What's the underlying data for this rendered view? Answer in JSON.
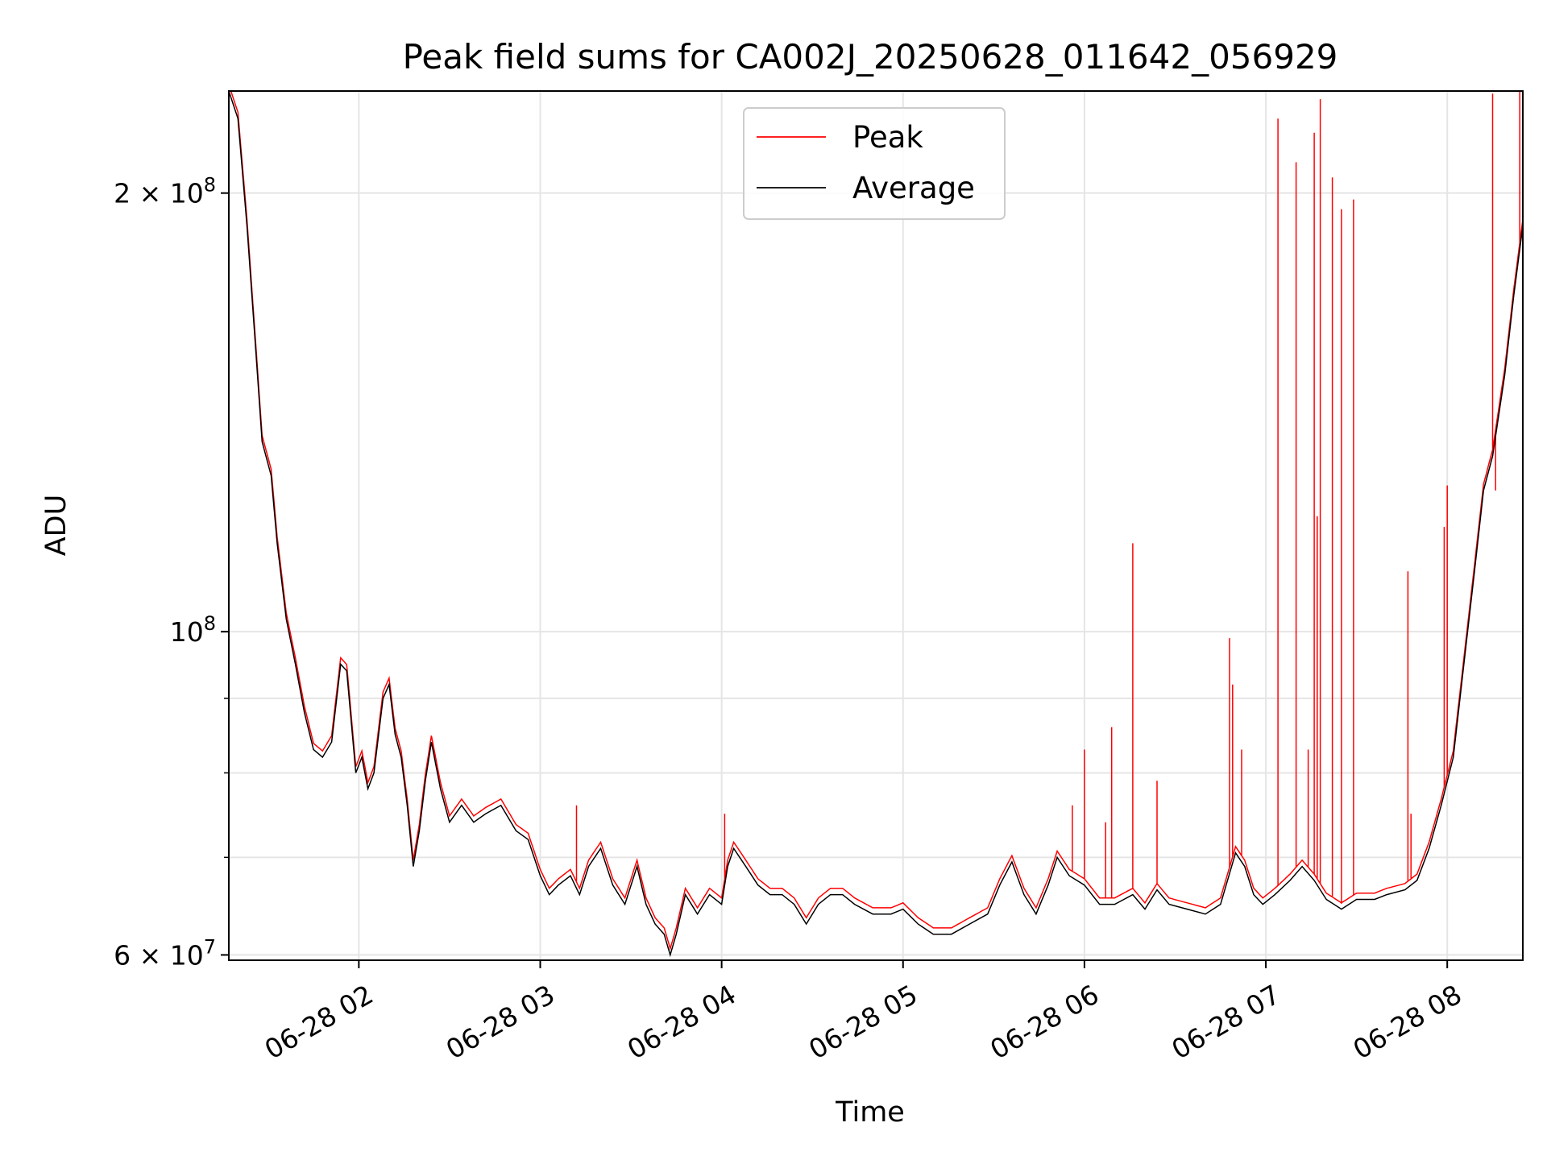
{
  "chart_data": {
    "type": "line",
    "title": "Peak field sums for CA002J_20250628_011642_056929",
    "xlabel": "Time",
    "ylabel": "ADU",
    "x_unit": "datetime",
    "xlim": [
      "2025-06-28 01:17",
      "2025-06-28 08:25"
    ],
    "ylim": [
      59500000,
      235000000
    ],
    "yscale": "log",
    "grid": true,
    "legend_position": "top-center",
    "x_ticks": [
      {
        "value": "2025-06-28 02:00",
        "label": "06-28 02"
      },
      {
        "value": "2025-06-28 03:00",
        "label": "06-28 03"
      },
      {
        "value": "2025-06-28 04:00",
        "label": "06-28 04"
      },
      {
        "value": "2025-06-28 05:00",
        "label": "06-28 05"
      },
      {
        "value": "2025-06-28 06:00",
        "label": "06-28 06"
      },
      {
        "value": "2025-06-28 07:00",
        "label": "06-28 07"
      },
      {
        "value": "2025-06-28 08:00",
        "label": "06-28 08"
      }
    ],
    "y_ticks_major": [
      {
        "value": 60000000,
        "base": "6 × 10",
        "exp": "7"
      },
      {
        "value": 100000000,
        "base": "10",
        "exp": "8"
      },
      {
        "value": 200000000,
        "base": "2 × 10",
        "exp": "8"
      }
    ],
    "y_ticks_minor": [
      70000000,
      80000000,
      90000000
    ],
    "series": [
      {
        "name": "Average",
        "color": "#000000",
        "points": [
          [
            "2025-06-28 01:17",
            235000000
          ],
          [
            "2025-06-28 01:20",
            225000000
          ],
          [
            "2025-06-28 01:23",
            190000000
          ],
          [
            "2025-06-28 01:26",
            155000000
          ],
          [
            "2025-06-28 01:28",
            135000000
          ],
          [
            "2025-06-28 01:31",
            128000000
          ],
          [
            "2025-06-28 01:33",
            115000000
          ],
          [
            "2025-06-28 01:36",
            102000000
          ],
          [
            "2025-06-28 01:39",
            95000000
          ],
          [
            "2025-06-28 01:42",
            88000000
          ],
          [
            "2025-06-28 01:45",
            83000000
          ],
          [
            "2025-06-28 01:48",
            82000000
          ],
          [
            "2025-06-28 01:51",
            84000000
          ],
          [
            "2025-06-28 01:54",
            95000000
          ],
          [
            "2025-06-28 01:56",
            94000000
          ],
          [
            "2025-06-28 01:59",
            80000000
          ],
          [
            "2025-06-28 02:01",
            82000000
          ],
          [
            "2025-06-28 02:03",
            78000000
          ],
          [
            "2025-06-28 02:05",
            80000000
          ],
          [
            "2025-06-28 02:08",
            90000000
          ],
          [
            "2025-06-28 02:10",
            92000000
          ],
          [
            "2025-06-28 02:12",
            85000000
          ],
          [
            "2025-06-28 02:14",
            82000000
          ],
          [
            "2025-06-28 02:16",
            76000000
          ],
          [
            "2025-06-28 02:18",
            69000000
          ],
          [
            "2025-06-28 02:20",
            73000000
          ],
          [
            "2025-06-28 02:22",
            79000000
          ],
          [
            "2025-06-28 02:24",
            84000000
          ],
          [
            "2025-06-28 02:27",
            78000000
          ],
          [
            "2025-06-28 02:30",
            74000000
          ],
          [
            "2025-06-28 02:34",
            76000000
          ],
          [
            "2025-06-28 02:38",
            74000000
          ],
          [
            "2025-06-28 02:42",
            75000000
          ],
          [
            "2025-06-28 02:47",
            76000000
          ],
          [
            "2025-06-28 02:52",
            73000000
          ],
          [
            "2025-06-28 02:56",
            72000000
          ],
          [
            "2025-06-28 03:00",
            68000000
          ],
          [
            "2025-06-28 03:03",
            66000000
          ],
          [
            "2025-06-28 03:06",
            67000000
          ],
          [
            "2025-06-28 03:10",
            68000000
          ],
          [
            "2025-06-28 03:13",
            66000000
          ],
          [
            "2025-06-28 03:16",
            69000000
          ],
          [
            "2025-06-28 03:20",
            71000000
          ],
          [
            "2025-06-28 03:24",
            67000000
          ],
          [
            "2025-06-28 03:28",
            65000000
          ],
          [
            "2025-06-28 03:32",
            69000000
          ],
          [
            "2025-06-28 03:35",
            65000000
          ],
          [
            "2025-06-28 03:38",
            63000000
          ],
          [
            "2025-06-28 03:41",
            62000000
          ],
          [
            "2025-06-28 03:43",
            60000000
          ],
          [
            "2025-06-28 03:45",
            62000000
          ],
          [
            "2025-06-28 03:48",
            66000000
          ],
          [
            "2025-06-28 03:52",
            64000000
          ],
          [
            "2025-06-28 03:56",
            66000000
          ],
          [
            "2025-06-28 04:00",
            65000000
          ],
          [
            "2025-06-28 04:02",
            69000000
          ],
          [
            "2025-06-28 04:04",
            71000000
          ],
          [
            "2025-06-28 04:08",
            69000000
          ],
          [
            "2025-06-28 04:12",
            67000000
          ],
          [
            "2025-06-28 04:16",
            66000000
          ],
          [
            "2025-06-28 04:20",
            66000000
          ],
          [
            "2025-06-28 04:24",
            65000000
          ],
          [
            "2025-06-28 04:28",
            63000000
          ],
          [
            "2025-06-28 04:32",
            65000000
          ],
          [
            "2025-06-28 04:36",
            66000000
          ],
          [
            "2025-06-28 04:40",
            66000000
          ],
          [
            "2025-06-28 04:44",
            65000000
          ],
          [
            "2025-06-28 04:50",
            64000000
          ],
          [
            "2025-06-28 04:56",
            64000000
          ],
          [
            "2025-06-28 05:00",
            64500000
          ],
          [
            "2025-06-28 05:05",
            63000000
          ],
          [
            "2025-06-28 05:10",
            62000000
          ],
          [
            "2025-06-28 05:16",
            62000000
          ],
          [
            "2025-06-28 05:22",
            63000000
          ],
          [
            "2025-06-28 05:28",
            64000000
          ],
          [
            "2025-06-28 05:32",
            67000000
          ],
          [
            "2025-06-28 05:36",
            69500000
          ],
          [
            "2025-06-28 05:40",
            66000000
          ],
          [
            "2025-06-28 05:44",
            64000000
          ],
          [
            "2025-06-28 05:48",
            67000000
          ],
          [
            "2025-06-28 05:51",
            70000000
          ],
          [
            "2025-06-28 05:55",
            68000000
          ],
          [
            "2025-06-28 06:00",
            67000000
          ],
          [
            "2025-06-28 06:05",
            65000000
          ],
          [
            "2025-06-28 06:10",
            65000000
          ],
          [
            "2025-06-28 06:16",
            66000000
          ],
          [
            "2025-06-28 06:20",
            64500000
          ],
          [
            "2025-06-28 06:24",
            66500000
          ],
          [
            "2025-06-28 06:28",
            65000000
          ],
          [
            "2025-06-28 06:34",
            64500000
          ],
          [
            "2025-06-28 06:40",
            64000000
          ],
          [
            "2025-06-28 06:45",
            65000000
          ],
          [
            "2025-06-28 06:50",
            70500000
          ],
          [
            "2025-06-28 06:53",
            69000000
          ],
          [
            "2025-06-28 06:56",
            66000000
          ],
          [
            "2025-06-28 06:59",
            65000000
          ],
          [
            "2025-06-28 07:03",
            66000000
          ],
          [
            "2025-06-28 07:08",
            67500000
          ],
          [
            "2025-06-28 07:12",
            69000000
          ],
          [
            "2025-06-28 07:16",
            67500000
          ],
          [
            "2025-06-28 07:20",
            65500000
          ],
          [
            "2025-06-28 07:25",
            64500000
          ],
          [
            "2025-06-28 07:30",
            65500000
          ],
          [
            "2025-06-28 07:36",
            65500000
          ],
          [
            "2025-06-28 07:40",
            66000000
          ],
          [
            "2025-06-28 07:46",
            66500000
          ],
          [
            "2025-06-28 07:50",
            67500000
          ],
          [
            "2025-06-28 07:54",
            71000000
          ],
          [
            "2025-06-28 07:58",
            76000000
          ],
          [
            "2025-06-28 08:02",
            82000000
          ],
          [
            "2025-06-28 08:06",
            97000000
          ],
          [
            "2025-06-28 08:09",
            110000000
          ],
          [
            "2025-06-28 08:12",
            125000000
          ],
          [
            "2025-06-28 08:15",
            132000000
          ],
          [
            "2025-06-28 08:19",
            150000000
          ],
          [
            "2025-06-28 08:22",
            170000000
          ],
          [
            "2025-06-28 08:25",
            190000000
          ]
        ]
      },
      {
        "name": "Peak",
        "color": "#ff0000",
        "baseline_offset": 1.01,
        "spikes": [
          [
            "2025-06-28 03:12",
            76000000
          ],
          [
            "2025-06-28 04:01",
            75000000
          ],
          [
            "2025-06-28 05:56",
            76000000
          ],
          [
            "2025-06-28 06:00",
            83000000
          ],
          [
            "2025-06-28 06:07",
            74000000
          ],
          [
            "2025-06-28 06:09",
            86000000
          ],
          [
            "2025-06-28 06:16",
            115000000
          ],
          [
            "2025-06-28 06:24",
            79000000
          ],
          [
            "2025-06-28 06:48",
            99000000
          ],
          [
            "2025-06-28 06:49",
            92000000
          ],
          [
            "2025-06-28 06:52",
            83000000
          ],
          [
            "2025-06-28 07:04",
            225000000
          ],
          [
            "2025-06-28 07:10",
            210000000
          ],
          [
            "2025-06-28 07:14",
            83000000
          ],
          [
            "2025-06-28 07:16",
            220000000
          ],
          [
            "2025-06-28 07:17",
            120000000
          ],
          [
            "2025-06-28 07:18",
            232000000
          ],
          [
            "2025-06-28 07:22",
            205000000
          ],
          [
            "2025-06-28 07:25",
            195000000
          ],
          [
            "2025-06-28 07:29",
            198000000
          ],
          [
            "2025-06-28 07:47",
            110000000
          ],
          [
            "2025-06-28 07:48",
            75000000
          ],
          [
            "2025-06-28 07:59",
            118000000
          ],
          [
            "2025-06-28 08:00",
            126000000
          ],
          [
            "2025-06-28 08:15",
            234000000
          ],
          [
            "2025-06-28 08:16",
            125000000
          ],
          [
            "2025-06-28 08:24",
            235000000
          ]
        ]
      }
    ]
  }
}
